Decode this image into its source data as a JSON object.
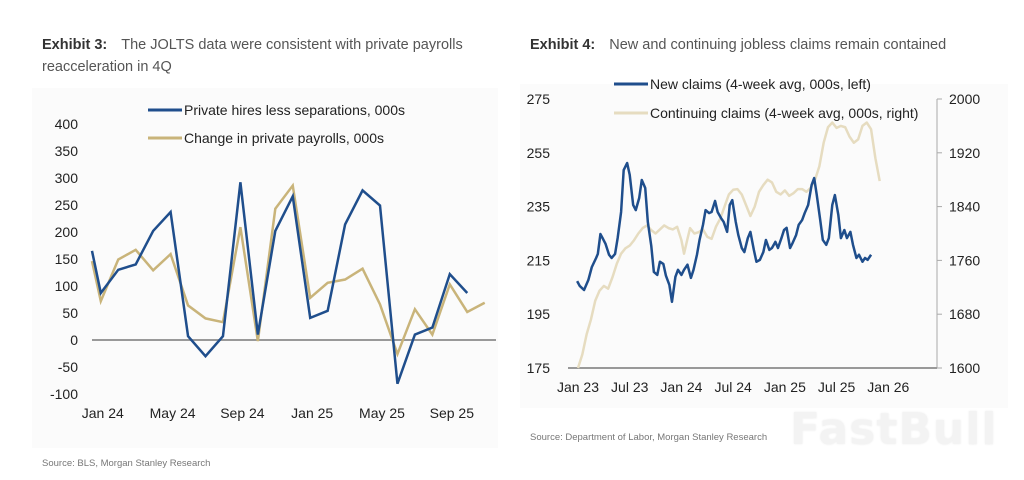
{
  "exhibit3": {
    "label": "Exhibit 3:",
    "title": "The JOLTS data were consistent with private payrolls reacceleration in 4Q",
    "source": "Source: BLS, Morgan Stanley Research"
  },
  "exhibit4": {
    "label": "Exhibit 4:",
    "title": "New and continuing jobless claims remain contained",
    "source": "Source: Department of Labor, Morgan Stanley Research"
  },
  "watermark": "FastBull",
  "chart_data": [
    {
      "id": "exhibit3",
      "type": "line",
      "title": "The JOLTS data were consistent with private payrolls reacceleration in 4Q",
      "xlabel": "",
      "ylabel": "",
      "x": [
        "Dec 23",
        "Jan 24",
        "Feb 24",
        "Mar 24",
        "Apr 24",
        "May 24",
        "Jun 24",
        "Jul 24",
        "Aug 24",
        "Sep 24",
        "Oct 24",
        "Nov 24",
        "Dec 24",
        "Jan 25",
        "Feb 25",
        "Mar 25",
        "Apr 25",
        "May 25",
        "Jun 25",
        "Jul 25",
        "Aug 25",
        "Sep 25",
        "Oct 25",
        "Nov 25"
      ],
      "xticks": [
        "Jan 24",
        "May 24",
        "Sep 24",
        "Jan 25",
        "May 25",
        "Sep 25"
      ],
      "ylim": [
        -100,
        400
      ],
      "yticks": [
        400,
        350,
        300,
        250,
        200,
        150,
        100,
        50,
        0,
        -50,
        -100
      ],
      "zero_line": true,
      "grid": false,
      "legend_position": "top-center",
      "series": [
        {
          "name": "Private hires less separations, 000s",
          "color": "#1f4e8c",
          "values": [
            165,
            87,
            130,
            140,
            202,
            237,
            7,
            -30,
            7,
            292,
            10,
            202,
            266,
            41,
            54,
            214,
            277,
            249,
            -81,
            10,
            23,
            122,
            87,
            null
          ]
        },
        {
          "name": "Change in private payrolls, 000s",
          "color": "#c9b47a",
          "values": [
            146,
            72,
            149,
            167,
            129,
            159,
            64,
            40,
            33,
            209,
            -2,
            243,
            286,
            78,
            106,
            112,
            132,
            66,
            -26,
            57,
            10,
            103,
            52,
            69
          ]
        }
      ]
    },
    {
      "id": "exhibit4",
      "type": "line",
      "title": "New and continuing jobless claims remain contained",
      "xlabel": "",
      "xticks": [
        "Jan 23",
        "Jul 23",
        "Jan 24",
        "Jul 24",
        "Jan 25",
        "Jul 25",
        "Jan 26"
      ],
      "x_unit": "months since Jan 23",
      "xlim": [
        0,
        42
      ],
      "ylim_left": [
        175,
        275
      ],
      "yticks_left": [
        275,
        255,
        235,
        215,
        195,
        175
      ],
      "ylim_right": [
        1600,
        2000
      ],
      "yticks_right": [
        2000,
        1920,
        1840,
        1760,
        1680,
        1600
      ],
      "grid": false,
      "legend_position": "top-center",
      "series": [
        {
          "name": "New claims (4-week avg, 000s, left)",
          "axis": "left",
          "color": "#1f4e8c",
          "points": [
            [
              -0.1,
              207.3
            ],
            [
              0.2,
              205.5
            ],
            [
              0.7,
              204.0
            ],
            [
              1.2,
              207.7
            ],
            [
              1.6,
              212.5
            ],
            [
              2.1,
              215.9
            ],
            [
              2.3,
              217.4
            ],
            [
              2.6,
              224.8
            ],
            [
              2.9,
              223.0
            ],
            [
              3.2,
              221.1
            ],
            [
              3.6,
              217.1
            ],
            [
              3.9,
              215.9
            ],
            [
              4.3,
              217.4
            ],
            [
              4.6,
              223.3
            ],
            [
              5.0,
              233.0
            ],
            [
              5.3,
              248.6
            ],
            [
              5.7,
              251.2
            ],
            [
              6.0,
              246.8
            ],
            [
              6.4,
              235.6
            ],
            [
              6.7,
              233.7
            ],
            [
              7.1,
              238.2
            ],
            [
              7.4,
              244.9
            ],
            [
              7.8,
              241.9
            ],
            [
              8.1,
              229.3
            ],
            [
              8.5,
              220.4
            ],
            [
              8.8,
              210.7
            ],
            [
              9.2,
              209.6
            ],
            [
              9.5,
              214.5
            ],
            [
              9.9,
              213.7
            ],
            [
              10.2,
              209.3
            ],
            [
              10.6,
              205.9
            ],
            [
              10.9,
              199.6
            ],
            [
              11.3,
              208.9
            ],
            [
              11.6,
              211.5
            ],
            [
              12.0,
              209.6
            ],
            [
              12.3,
              211.5
            ],
            [
              12.7,
              213.4
            ],
            [
              13.1,
              208.5
            ],
            [
              13.4,
              211.5
            ],
            [
              13.8,
              217.1
            ],
            [
              14.1,
              222.6
            ],
            [
              14.5,
              228.2
            ],
            [
              14.8,
              233.7
            ],
            [
              15.2,
              232.6
            ],
            [
              15.5,
              233.0
            ],
            [
              15.9,
              237.1
            ],
            [
              16.2,
              233.0
            ],
            [
              16.6,
              230.7
            ],
            [
              16.9,
              229.3
            ],
            [
              17.3,
              225.6
            ],
            [
              17.6,
              235.6
            ],
            [
              17.9,
              237.4
            ],
            [
              18.3,
              229.3
            ],
            [
              18.6,
              224.4
            ],
            [
              19.0,
              219.6
            ],
            [
              19.3,
              218.1
            ],
            [
              19.7,
              223.3
            ],
            [
              20.0,
              225.6
            ],
            [
              20.4,
              218.9
            ],
            [
              20.7,
              214.5
            ],
            [
              21.1,
              215.2
            ],
            [
              21.5,
              218.1
            ],
            [
              21.8,
              222.6
            ],
            [
              22.2,
              218.9
            ],
            [
              22.5,
              219.6
            ],
            [
              22.9,
              221.9
            ],
            [
              23.2,
              219.6
            ],
            [
              23.6,
              223.3
            ],
            [
              23.9,
              226.3
            ],
            [
              24.2,
              227.1
            ],
            [
              24.6,
              219.6
            ],
            [
              24.9,
              221.5
            ],
            [
              25.3,
              224.4
            ],
            [
              25.6,
              228.2
            ],
            [
              26.0,
              230.0
            ],
            [
              26.3,
              232.6
            ],
            [
              26.7,
              235.6
            ],
            [
              27.1,
              243.0
            ],
            [
              27.4,
              245.6
            ],
            [
              27.7,
              239.3
            ],
            [
              28.1,
              230.0
            ],
            [
              28.4,
              222.6
            ],
            [
              28.8,
              220.8
            ],
            [
              29.1,
              223.3
            ],
            [
              29.5,
              235.6
            ],
            [
              29.8,
              239.3
            ],
            [
              30.2,
              231.9
            ],
            [
              30.5,
              223.3
            ],
            [
              30.9,
              226.3
            ],
            [
              31.2,
              223.3
            ],
            [
              31.6,
              225.6
            ],
            [
              31.9,
              220.8
            ],
            [
              32.3,
              215.9
            ],
            [
              32.6,
              217.1
            ],
            [
              33.0,
              214.5
            ],
            [
              33.3,
              215.9
            ],
            [
              33.6,
              215.2
            ],
            [
              34.0,
              217.1
            ]
          ]
        },
        {
          "name": "Continuing claims (4-week avg, 000s, right)",
          "axis": "right",
          "color": "#e6dcc0",
          "points": [
            [
              0.0,
              1600
            ],
            [
              0.5,
              1620
            ],
            [
              1.0,
              1650
            ],
            [
              1.5,
              1672
            ],
            [
              2.0,
              1700
            ],
            [
              2.5,
              1715
            ],
            [
              3.0,
              1722
            ],
            [
              3.5,
              1718
            ],
            [
              4.0,
              1735
            ],
            [
              4.5,
              1755
            ],
            [
              5.0,
              1770
            ],
            [
              5.5,
              1778
            ],
            [
              6.0,
              1782
            ],
            [
              6.5,
              1790
            ],
            [
              7.0,
              1800
            ],
            [
              7.5,
              1808
            ],
            [
              8.0,
              1812
            ],
            [
              8.5,
              1805
            ],
            [
              9.0,
              1800
            ],
            [
              9.5,
              1806
            ],
            [
              10.0,
              1812
            ],
            [
              10.5,
              1808
            ],
            [
              11.0,
              1806
            ],
            [
              11.5,
              1810
            ],
            [
              12.0,
              1790
            ],
            [
              12.3,
              1770
            ],
            [
              12.7,
              1792
            ],
            [
              13.0,
              1808
            ],
            [
              13.5,
              1800
            ],
            [
              14.0,
              1802
            ],
            [
              14.5,
              1806
            ],
            [
              15.0,
              1795
            ],
            [
              15.5,
              1792
            ],
            [
              16.0,
              1810
            ],
            [
              16.5,
              1822
            ],
            [
              17.0,
              1840
            ],
            [
              17.5,
              1858
            ],
            [
              18.0,
              1865
            ],
            [
              18.5,
              1866
            ],
            [
              19.0,
              1858
            ],
            [
              19.5,
              1842
            ],
            [
              20.0,
              1826
            ],
            [
              20.5,
              1840
            ],
            [
              21.0,
              1862
            ],
            [
              21.5,
              1872
            ],
            [
              22.0,
              1880
            ],
            [
              22.5,
              1876
            ],
            [
              23.0,
              1862
            ],
            [
              23.5,
              1858
            ],
            [
              24.0,
              1864
            ],
            [
              24.5,
              1856
            ],
            [
              25.0,
              1860
            ],
            [
              25.5,
              1866
            ],
            [
              26.0,
              1866
            ],
            [
              26.5,
              1862
            ],
            [
              27.0,
              1868
            ],
            [
              27.5,
              1880
            ],
            [
              28.0,
              1900
            ],
            [
              28.5,
              1935
            ],
            [
              29.0,
              1958
            ],
            [
              29.5,
              1965
            ],
            [
              30.0,
              1957
            ],
            [
              30.5,
              1960
            ],
            [
              31.0,
              1958
            ],
            [
              31.5,
              1944
            ],
            [
              32.0,
              1935
            ],
            [
              32.5,
              1940
            ],
            [
              33.0,
              1960
            ],
            [
              33.5,
              1965
            ],
            [
              34.0,
              1955
            ],
            [
              34.5,
              1912
            ],
            [
              35.0,
              1878
            ]
          ]
        }
      ]
    }
  ]
}
